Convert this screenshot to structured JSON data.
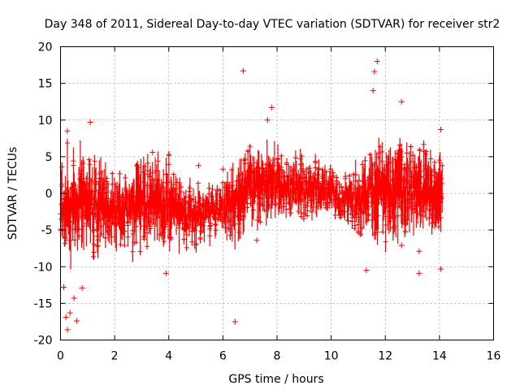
{
  "chart_data": {
    "type": "scatter",
    "title": "Day 348 of 2011, Sidereal Day-to-day VTEC variation (SDTVAR) for receiver str2",
    "xlabel": "GPS time / hours",
    "ylabel": "SDTVAR / TECUs",
    "xlim": [
      0,
      16
    ],
    "ylim": [
      -20,
      20
    ],
    "xticks": [
      "0",
      "2",
      "4",
      "6",
      "8",
      "10",
      "12",
      "14",
      "16"
    ],
    "yticks": [
      "-20",
      "-15",
      "-10",
      "-5",
      "0",
      "5",
      "10",
      "15",
      "20"
    ],
    "grid": true,
    "marker": "+",
    "color": "#ff0000",
    "envelope": {
      "x": [
        0,
        0.2,
        0.4,
        0.6,
        0.8,
        1.0,
        1.2,
        1.5,
        2.0,
        2.5,
        3.0,
        3.5,
        4.0,
        4.5,
        5.0,
        5.5,
        6.0,
        6.2,
        6.5,
        7.0,
        7.5,
        8.0,
        8.5,
        9.0,
        9.5,
        10.0,
        10.5,
        11.0,
        11.4,
        11.6,
        11.8,
        12.0,
        12.5,
        13.0,
        13.5,
        14.0,
        14.1
      ],
      "upper": [
        3,
        6,
        7,
        7,
        6,
        5,
        5,
        5,
        3,
        3,
        4,
        5,
        5,
        2,
        1,
        1,
        1,
        3,
        5,
        6,
        7,
        6,
        5,
        5,
        4,
        4,
        2,
        4,
        6,
        8,
        7,
        6,
        7,
        7,
        6,
        5,
        5
      ],
      "lower": [
        -7,
        -9,
        -10,
        -10,
        -9,
        -8,
        -9,
        -9,
        -8,
        -8,
        -8,
        -7,
        -8,
        -7,
        -7,
        -6,
        -5,
        -7,
        -7,
        -5,
        -4,
        -4,
        -3,
        -3,
        -3,
        -3,
        -4,
        -5,
        -6,
        -8,
        -7,
        -7,
        -6,
        -5,
        -5,
        -6,
        -6
      ]
    },
    "outliers": [
      {
        "x": 0.26,
        "y": -18.6
      },
      {
        "x": 0.2,
        "y": -16.9
      },
      {
        "x": 0.35,
        "y": -16.3
      },
      {
        "x": 0.5,
        "y": -14.3
      },
      {
        "x": 0.6,
        "y": -17.4
      },
      {
        "x": 0.8,
        "y": -12.9
      },
      {
        "x": 0.12,
        "y": -12.8
      },
      {
        "x": 0.25,
        "y": 8.5
      },
      {
        "x": 1.1,
        "y": 9.7
      },
      {
        "x": 3.4,
        "y": 5.6
      },
      {
        "x": 3.9,
        "y": -10.9
      },
      {
        "x": 5.1,
        "y": 3.8
      },
      {
        "x": 6.0,
        "y": 3.3
      },
      {
        "x": 6.45,
        "y": -17.5
      },
      {
        "x": 6.75,
        "y": 16.7
      },
      {
        "x": 7.8,
        "y": 11.7
      },
      {
        "x": 7.25,
        "y": -6.4
      },
      {
        "x": 7.65,
        "y": 10.0
      },
      {
        "x": 11.3,
        "y": -10.5
      },
      {
        "x": 11.7,
        "y": 18.0
      },
      {
        "x": 11.6,
        "y": 16.6
      },
      {
        "x": 11.55,
        "y": 14.0
      },
      {
        "x": 12.6,
        "y": 12.5
      },
      {
        "x": 12.6,
        "y": -7.1
      },
      {
        "x": 13.25,
        "y": -10.9
      },
      {
        "x": 13.25,
        "y": -7.9
      },
      {
        "x": 14.05,
        "y": -10.3
      },
      {
        "x": 14.05,
        "y": 8.7
      }
    ]
  }
}
